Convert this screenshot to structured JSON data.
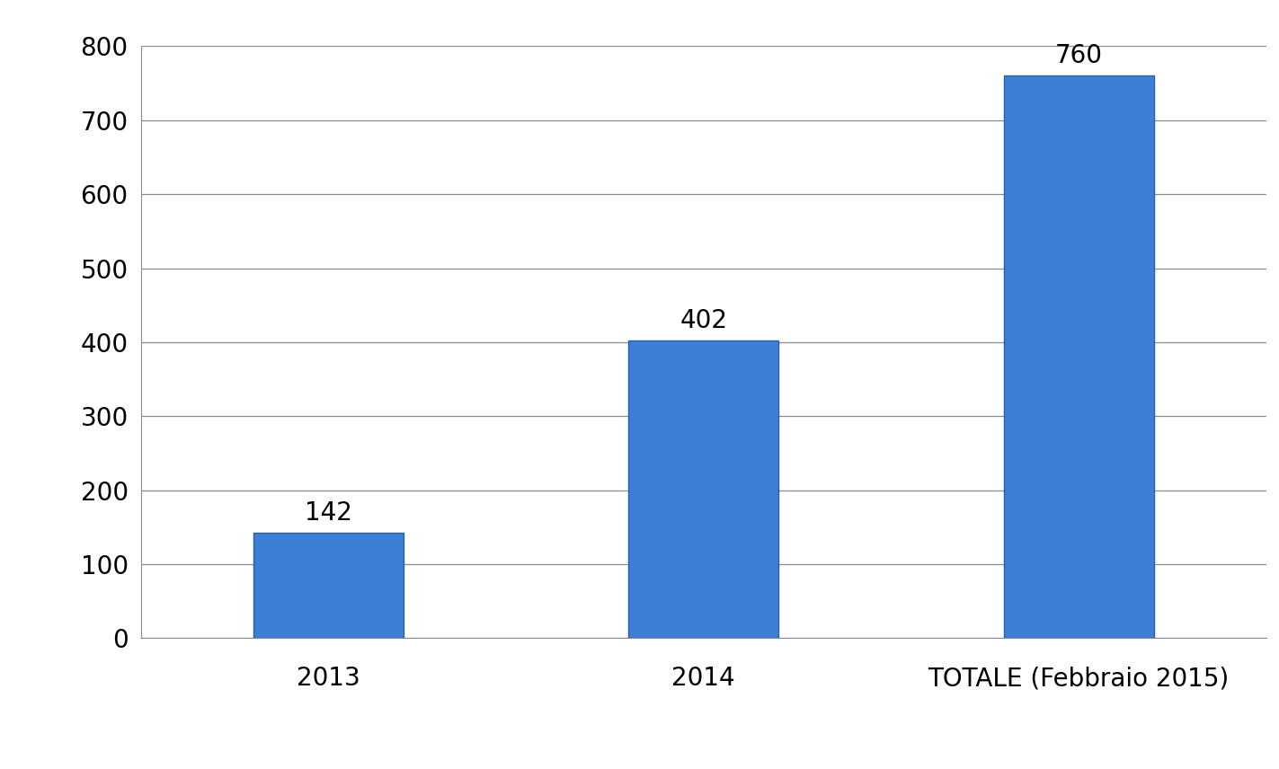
{
  "chart_data": {
    "type": "bar",
    "categories": [
      "2013",
      "2014",
      "TOTALE (Febbraio 2015)"
    ],
    "values": [
      142,
      402,
      760
    ],
    "color": "#3d7fd6",
    "ylim": [
      0,
      800
    ],
    "yticks": [
      0,
      100,
      200,
      300,
      400,
      500,
      600,
      700,
      800
    ],
    "grid": true,
    "data_labels": true
  }
}
